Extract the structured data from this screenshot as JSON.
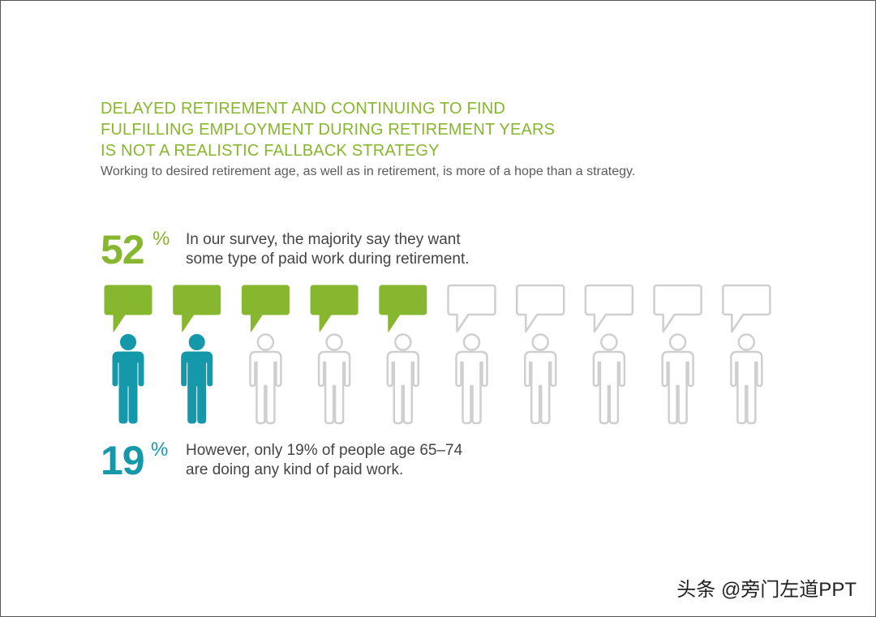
{
  "title": {
    "line1": "DELAYED RETIREMENT AND CONTINUING TO FIND",
    "line2": "FULFILLING EMPLOYMENT DURING RETIREMENT YEARS",
    "line3": "IS NOT A REALISTIC FALLBACK STRATEGY"
  },
  "subtitle": "Working to desired retirement age, as well as in retirement, is more of a hope than a strategy.",
  "stat_paid_work_wanted": {
    "number": "52",
    "percent_sign": "%",
    "line1": "In our survey, the majority say they want",
    "line2": "some type of paid work during retirement."
  },
  "stat_paid_work_actual": {
    "number": "19",
    "percent_sign": "%",
    "line1": "However, only 19% of people age 65–74",
    "line2": "are doing any kind of paid work."
  },
  "pictograph": {
    "total_people": 10,
    "speech_bubbles_filled": 5,
    "people_filled": 2,
    "colors": {
      "green": "#86b72e",
      "teal": "#1598aa",
      "outline": "#cfcfcf"
    },
    "bubble_icon": "speech-bubble-icon",
    "person_icon": "person-icon"
  },
  "watermark": "头条 @旁门左道PPT"
}
